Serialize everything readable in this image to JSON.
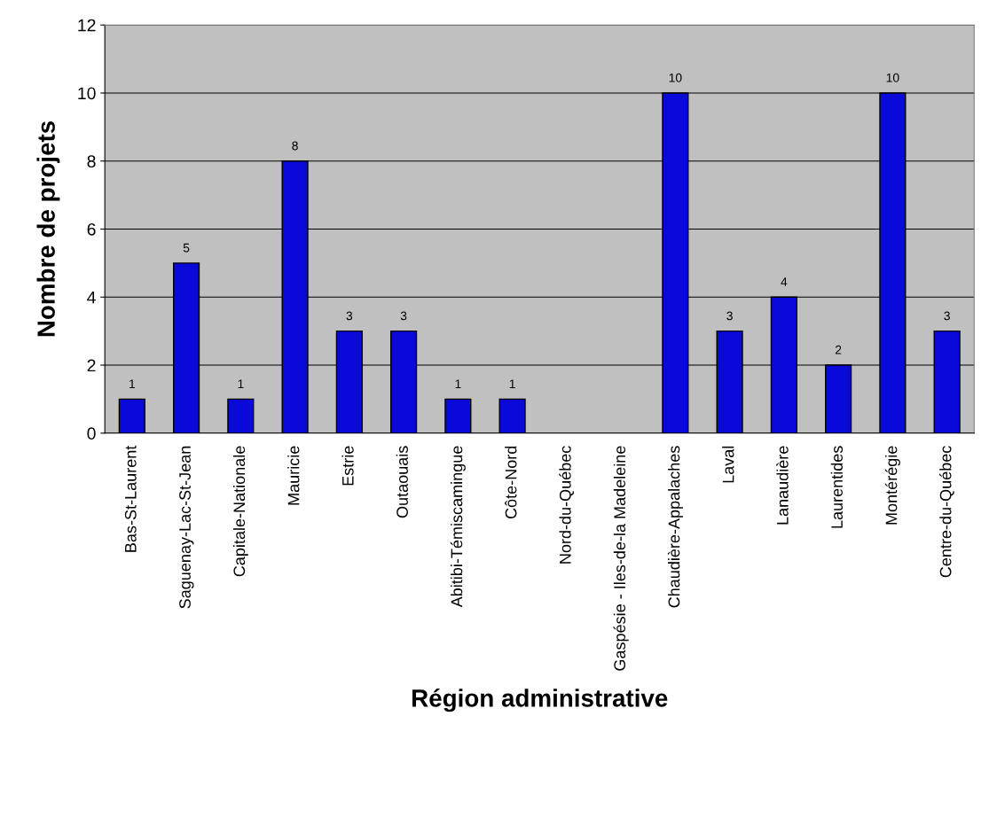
{
  "chart_data": {
    "type": "bar",
    "xlabel": "Région administrative",
    "ylabel": "Nombre de projets",
    "categories": [
      "Bas-St-Laurent",
      "Saguenay-Lac-St-Jean",
      "Capitale-Nationale",
      "Mauricie",
      "Estrie",
      "Outaouais",
      "Abitibi-Témiscamingue",
      "Côte-Nord",
      "Nord-du-Québec",
      "Gaspésie - Iles-de-la Madeleine",
      "Chaudière-Appalaches",
      "Laval",
      "Lanaudière",
      "Laurentides",
      "Montérégie",
      "Centre-du-Québec"
    ],
    "values": [
      1,
      5,
      1,
      8,
      3,
      3,
      1,
      1,
      null,
      null,
      10,
      3,
      4,
      2,
      10,
      3
    ],
    "value_labels": [
      "1",
      "5",
      "1",
      "8",
      "3",
      "3",
      "1",
      "1",
      null,
      null,
      "10",
      "3",
      "4",
      "2",
      "10",
      "3"
    ],
    "color": "#0a0ad8",
    "ylim": [
      0,
      12
    ],
    "yticks": [
      0,
      2,
      4,
      6,
      8,
      10,
      12
    ],
    "grid": "y",
    "legend": false
  }
}
